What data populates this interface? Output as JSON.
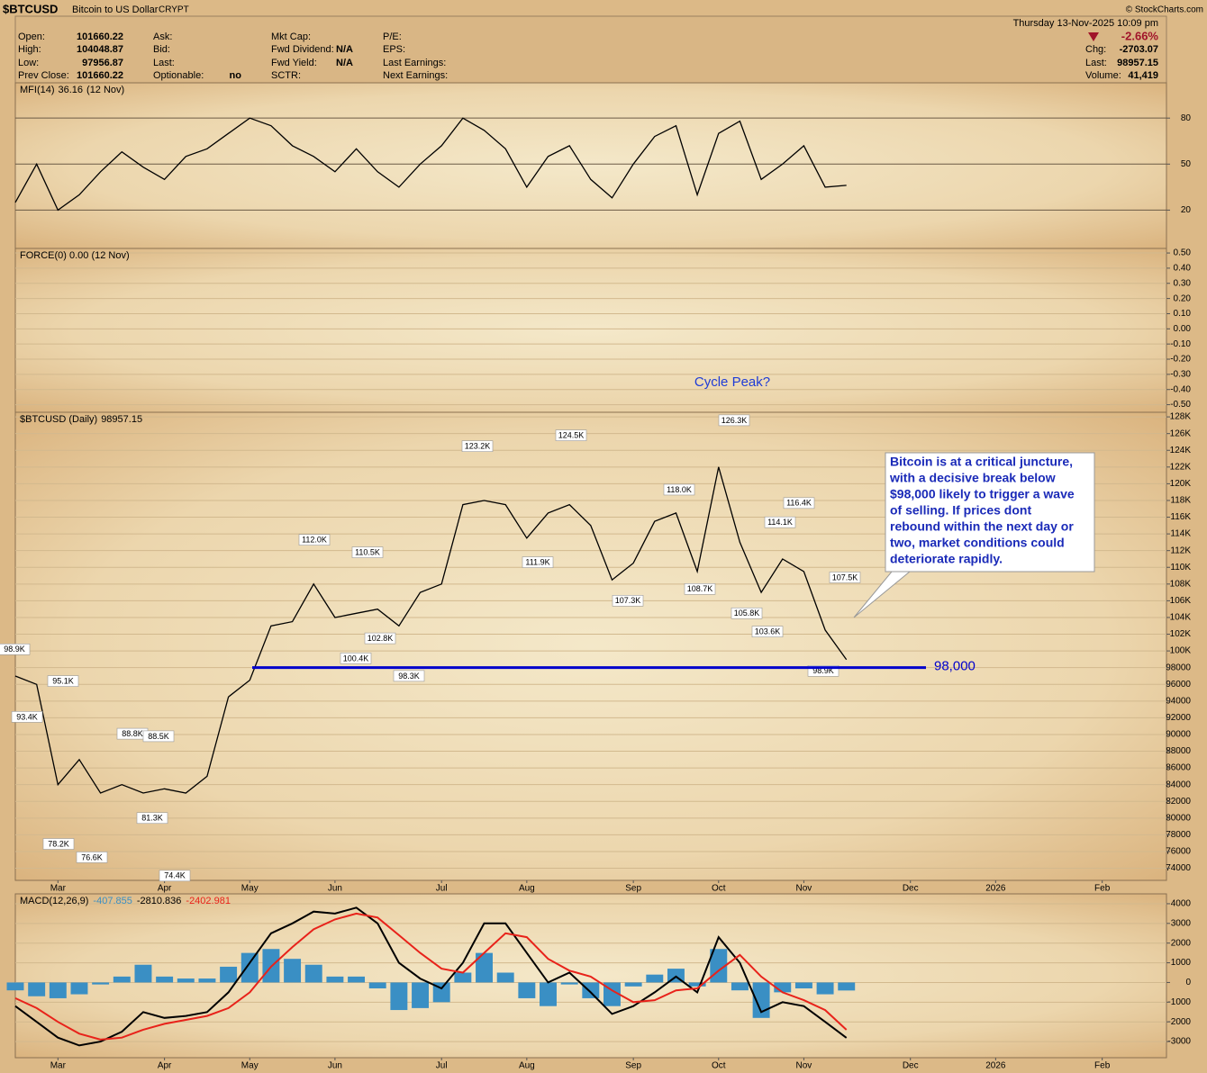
{
  "header": {
    "symbol": "$BTCUSD",
    "name": "Bitcoin to US Dollar",
    "exchange": "CRYPT",
    "source": "© StockCharts.com",
    "date": "Thursday 13-Nov-2025 10:09 pm",
    "change_pct": "-2.66%",
    "fields": [
      [
        {
          "label": "Open:",
          "value": "101660.22"
        },
        {
          "label": "High:",
          "value": "104048.87"
        },
        {
          "label": "Low:",
          "value": "97956.87"
        },
        {
          "label": "Prev Close:",
          "value": "101660.22"
        }
      ],
      [
        {
          "label": "Ask:"
        },
        {
          "label": "Bid:"
        },
        {
          "label": "Last:"
        },
        {
          "label": "Optionable:",
          "value": "no"
        }
      ],
      [
        {
          "label": "Mkt Cap:"
        },
        {
          "label": "Fwd Dividend:",
          "value": "N/A"
        },
        {
          "label": "Fwd Yield:",
          "value": "N/A"
        },
        {
          "label": "SCTR:"
        }
      ],
      [
        {
          "label": "P/E:"
        },
        {
          "label": "EPS:"
        },
        {
          "label": "Last Earnings:"
        },
        {
          "label": "Next Earnings:"
        }
      ]
    ],
    "quote": [
      {
        "label": "Chg:",
        "value": "-2703.07"
      },
      {
        "label": "Last:",
        "value": "98957.15"
      },
      {
        "label": "Volume:",
        "value": "41,419"
      }
    ]
  },
  "chart_data": [
    {
      "type": "line",
      "title": "MFI(14)",
      "note": "(12 Nov)",
      "ylim": [
        -5,
        103
      ],
      "yticks": [
        80,
        50,
        20
      ],
      "grid": true,
      "series": [
        {
          "color": "#000000",
          "values": [
            25,
            50,
            20,
            30,
            45,
            58,
            48,
            40,
            55,
            60,
            70,
            80,
            75,
            62,
            55,
            45,
            60,
            45,
            35,
            50,
            62,
            80,
            72,
            60,
            35,
            55,
            62,
            40,
            28,
            50,
            68,
            75,
            30,
            70,
            78,
            40,
            50,
            62,
            35,
            36.16,
            null,
            null,
            null,
            null,
            null,
            null,
            null,
            null,
            null,
            null,
            null,
            null,
            null,
            null,
            null
          ]
        }
      ]
    },
    {
      "type": "line",
      "title": "FORCE(0) 0.00 (12 Nov)",
      "ylim": [
        -0.55,
        0.53
      ],
      "grid": true,
      "yticks": [
        {
          "value": 0.5,
          "label": "0.50"
        },
        {
          "value": 0.4,
          "label": "0.40"
        },
        {
          "value": 0.3,
          "label": "0.30"
        },
        {
          "value": 0.2,
          "label": "0.20"
        },
        {
          "value": 0.1,
          "label": "0.10"
        },
        {
          "value": 0,
          "label": "0.00"
        },
        {
          "value": -0.1,
          "label": "-0.10"
        },
        {
          "value": -0.2,
          "label": "-0.20"
        },
        {
          "value": -0.3,
          "label": "-0.30"
        },
        {
          "value": -0.4,
          "label": "-0.40"
        },
        {
          "value": -0.5,
          "label": "-0.50"
        }
      ],
      "series": []
    },
    {
      "type": "line",
      "title": "$BTCUSD (Daily)",
      "ylim": [
        72550,
        128550
      ],
      "grid": true,
      "categories": [
        null,
        null,
        "Mar",
        null,
        null,
        null,
        null,
        "Apr",
        null,
        null,
        null,
        "May",
        null,
        null,
        null,
        "Jun",
        null,
        null,
        null,
        null,
        "Jul",
        null,
        null,
        null,
        "Aug",
        null,
        null,
        null,
        null,
        "Sep",
        null,
        null,
        null,
        "Oct",
        null,
        null,
        null,
        "Nov",
        null,
        null,
        null,
        null,
        "Dec",
        null,
        null,
        null,
        "2026",
        null,
        null,
        null,
        null,
        "Feb",
        null,
        null,
        null
      ],
      "yticks": [
        {
          "value": 128000,
          "label": "128K"
        },
        {
          "value": 126000,
          "label": "126K"
        },
        {
          "value": 124000,
          "label": "124K"
        },
        {
          "value": 122000,
          "label": "122K"
        },
        {
          "value": 120000,
          "label": "120K"
        },
        {
          "value": 118000,
          "label": "118K"
        },
        {
          "value": 116000,
          "label": "116K"
        },
        {
          "value": 114000,
          "label": "114K"
        },
        {
          "value": 112000,
          "label": "112K"
        },
        {
          "value": 110000,
          "label": "110K"
        },
        {
          "value": 108000,
          "label": "108K"
        },
        {
          "value": 106000,
          "label": "106K"
        },
        {
          "value": 104000,
          "label": "104K"
        },
        {
          "value": 102000,
          "label": "102K"
        },
        {
          "value": 100000,
          "label": "100K"
        },
        98000,
        96000,
        94000,
        92000,
        90000,
        88000,
        86000,
        84000,
        82000,
        80000,
        78000,
        76000,
        74000
      ],
      "series": [
        {
          "color": "#000000",
          "values": [
            97000,
            96000,
            84000,
            87000,
            83000,
            84000,
            83000,
            83500,
            83000,
            85000,
            94500,
            96500,
            103000,
            103500,
            108000,
            104000,
            104500,
            105000,
            103000,
            107000,
            108000,
            117500,
            118000,
            117500,
            113500,
            116500,
            117500,
            115000,
            108500,
            110500,
            115500,
            116500,
            109500,
            122000,
            113000,
            107000,
            111000,
            109500,
            102500,
            98957.15,
            null,
            null,
            null,
            null,
            null,
            null,
            null,
            null,
            null,
            null,
            null,
            null,
            null,
            null,
            null
          ]
        }
      ],
      "labels": [
        {
          "value": 98900,
          "label": "98.9K"
        },
        {
          "value": 95100,
          "label": "95.1K"
        },
        {
          "value": 93400,
          "label": "93.4K"
        },
        {
          "value": 78200,
          "label": "78.2K"
        },
        {
          "value": 76600,
          "label": "76.6K"
        },
        {
          "value": 88800,
          "label": "88.8K"
        },
        {
          "value": 88500,
          "label": "88.5K"
        },
        {
          "value": 81300,
          "label": "81.3K"
        },
        {
          "value": 74400,
          "label": "74.4K"
        },
        {
          "value": 112000,
          "label": "112.0K"
        },
        {
          "value": 110500,
          "label": "110.5K"
        },
        {
          "value": 100400,
          "label": "100.4K"
        },
        {
          "value": 102800,
          "label": "102.8K"
        },
        {
          "value": 98300,
          "label": "98.3K"
        },
        {
          "value": 123200,
          "label": "123.2K"
        },
        {
          "value": 124500,
          "label": "124.5K"
        },
        {
          "value": 111900,
          "label": "111.9K"
        },
        {
          "value": 107300,
          "label": "107.3K"
        },
        {
          "value": 118000,
          "label": "118.0K"
        },
        {
          "value": 108700,
          "label": "108.7K"
        },
        {
          "value": 126300,
          "label": "126.3K"
        },
        {
          "value": 105800,
          "label": "105.8K"
        },
        {
          "value": 103600,
          "label": "103.6K"
        },
        {
          "value": 114100,
          "label": "114.1K"
        },
        {
          "value": 116400,
          "label": "116.4K"
        },
        {
          "value": 107500,
          "label": "107.5K"
        },
        {
          "value": 98900,
          "label": "98.9K"
        }
      ],
      "support": {
        "value": 98000,
        "label": "98,000",
        "color": "#0000cc"
      },
      "annotation": "Cycle Peak?",
      "callout": [
        "Bitcoin is at a critical juncture,",
        "with a decisive break below",
        "$98,000 likely to trigger a wave",
        "of selling. If prices dont",
        "rebound within the next day or",
        "two, market conditions could",
        "deteriorate rapidly."
      ]
    },
    {
      "type": "line",
      "title": "MACD(12,26,9)",
      "ylim": [
        -3820,
        4500
      ],
      "yticks": [
        4000,
        3000,
        2000,
        1000,
        0,
        -1000,
        -2000,
        -3000
      ],
      "grid": true,
      "categories": [
        null,
        null,
        "Mar",
        null,
        null,
        null,
        null,
        "Apr",
        null,
        null,
        null,
        "May",
        null,
        null,
        null,
        "Jun",
        null,
        null,
        null,
        null,
        "Jul",
        null,
        null,
        null,
        "Aug",
        null,
        null,
        null,
        null,
        "Sep",
        null,
        null,
        null,
        "Oct",
        null,
        null,
        null,
        "Nov",
        null,
        null,
        null,
        null,
        "Dec",
        null,
        null,
        null,
        "2026",
        null,
        null,
        null,
        null,
        "Feb",
        null,
        null,
        null
      ],
      "series": [
        {
          "kind": "bar",
          "color": "#3a8fc4",
          "values": [
            -400,
            -700,
            -800,
            -600,
            -100,
            300,
            900,
            300,
            200,
            200,
            800,
            1500,
            1700,
            1200,
            900,
            300,
            300,
            -300,
            -1400,
            -1300,
            -1000,
            500,
            1500,
            500,
            -800,
            -1200,
            -100,
            -800,
            -1200,
            -200,
            400,
            700,
            -200,
            1700,
            -400,
            -1800,
            -500,
            -300,
            -600,
            -407.855,
            null,
            null,
            null,
            null,
            null,
            null,
            null,
            null,
            null,
            null,
            null,
            null,
            null,
            null,
            null
          ]
        },
        {
          "kind": "line",
          "color": "#000000",
          "values": [
            -1200,
            -2000,
            -2800,
            -3200,
            -3000,
            -2500,
            -1500,
            -1800,
            -1700,
            -1500,
            -500,
            1000,
            2500,
            3000,
            3600,
            3500,
            3800,
            3000,
            1000,
            200,
            -300,
            1000,
            3000,
            3000,
            1500,
            0,
            500,
            -500,
            -1600,
            -1200,
            -500,
            300,
            -500,
            2300,
            1000,
            -1500,
            -1000,
            -1200,
            -2000,
            -2810.836,
            null,
            null,
            null,
            null,
            null,
            null,
            null,
            null,
            null,
            null,
            null,
            null,
            null,
            null,
            null
          ]
        },
        {
          "kind": "line",
          "color": "#e8221a",
          "values": [
            -800,
            -1300,
            -2000,
            -2600,
            -2900,
            -2800,
            -2400,
            -2100,
            -1900,
            -1700,
            -1300,
            -500,
            800,
            1800,
            2700,
            3200,
            3500,
            3300,
            2400,
            1500,
            700,
            500,
            1500,
            2500,
            2300,
            1200,
            600,
            300,
            -400,
            -1000,
            -900,
            -400,
            -300,
            600,
            1400,
            300,
            -500,
            -900,
            -1400,
            -2402.981,
            null,
            null,
            null,
            null,
            null,
            null,
            null,
            null,
            null,
            null,
            null,
            null,
            null,
            null,
            null
          ]
        }
      ]
    }
  ]
}
